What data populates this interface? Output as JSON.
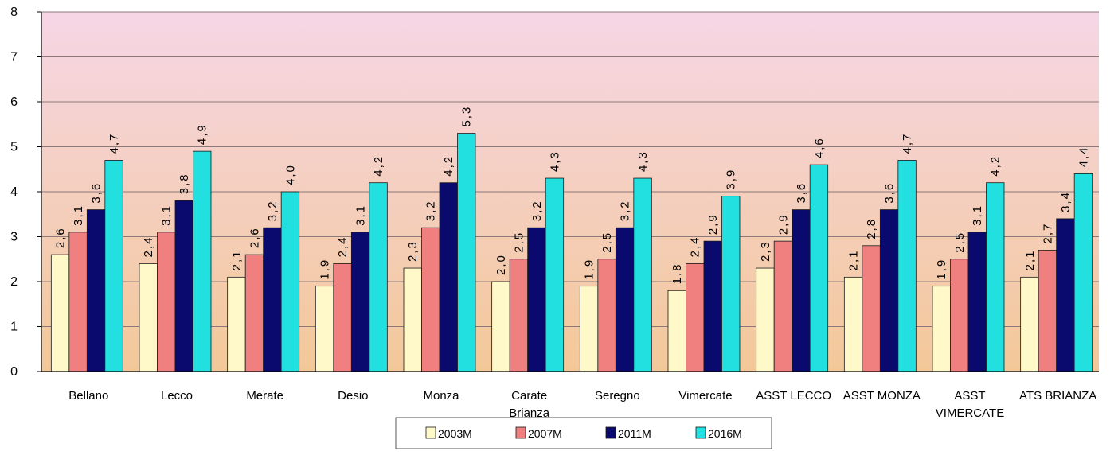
{
  "chart_data": {
    "type": "bar",
    "title": "",
    "xlabel": "",
    "ylabel": "",
    "ylim": [
      0,
      8
    ],
    "yticks": [
      "0",
      "1",
      "2",
      "3",
      "4",
      "5",
      "6",
      "7",
      "8"
    ],
    "grid": true,
    "legend_position": "bottom",
    "categories": [
      "Bellano",
      "Lecco",
      "Merate",
      "Desio",
      "Monza",
      "Carate Brianza",
      "Seregno",
      "Vimercate",
      "ASST LECCO",
      "ASST MONZA",
      "ASST VIMERCATE",
      "ATS BRIANZA"
    ],
    "series": [
      {
        "name": "2003M",
        "color": "#fff8c8",
        "values": [
          2.6,
          2.4,
          2.1,
          1.9,
          2.3,
          2.0,
          1.9,
          1.8,
          2.3,
          2.1,
          1.9,
          2.1
        ],
        "labels": [
          "2,6",
          "2,4",
          "2,1",
          "1,9",
          "2,3",
          "2,0",
          "1,9",
          "1,8",
          "2,3",
          "2,1",
          "1,9",
          "2,1"
        ]
      },
      {
        "name": "2007M",
        "color": "#f08080",
        "values": [
          3.1,
          3.1,
          2.6,
          2.4,
          3.2,
          2.5,
          2.5,
          2.4,
          2.9,
          2.8,
          2.5,
          2.7
        ],
        "labels": [
          "3,1",
          "3,1",
          "2,6",
          "2,4",
          "3,2",
          "2,5",
          "2,5",
          "2,4",
          "2,9",
          "2,8",
          "2,5",
          "2,7"
        ]
      },
      {
        "name": "2011M",
        "color": "#0a0a6e",
        "values": [
          3.6,
          3.8,
          3.2,
          3.1,
          4.2,
          3.2,
          3.2,
          2.9,
          3.6,
          3.6,
          3.1,
          3.4
        ],
        "labels": [
          "3,6",
          "3,8",
          "3,2",
          "3,1",
          "4,2",
          "3,2",
          "3,2",
          "2,9",
          "3,6",
          "3,6",
          "3,1",
          "3,4"
        ]
      },
      {
        "name": "2016M",
        "color": "#22e0e0",
        "values": [
          4.7,
          4.9,
          4.0,
          4.2,
          5.3,
          4.3,
          4.3,
          3.9,
          4.6,
          4.7,
          4.2,
          4.4
        ],
        "labels": [
          "4,7",
          "4,9",
          "4,0",
          "4,2",
          "5,3",
          "4,3",
          "4,3",
          "3,9",
          "4,6",
          "4,7",
          "4,2",
          "4,4"
        ]
      }
    ],
    "colors": {
      "bg_top": "#f6d6e6",
      "bg_bottom": "#f3c898",
      "grid": "#8c7a7a",
      "axis": "#000000"
    }
  }
}
